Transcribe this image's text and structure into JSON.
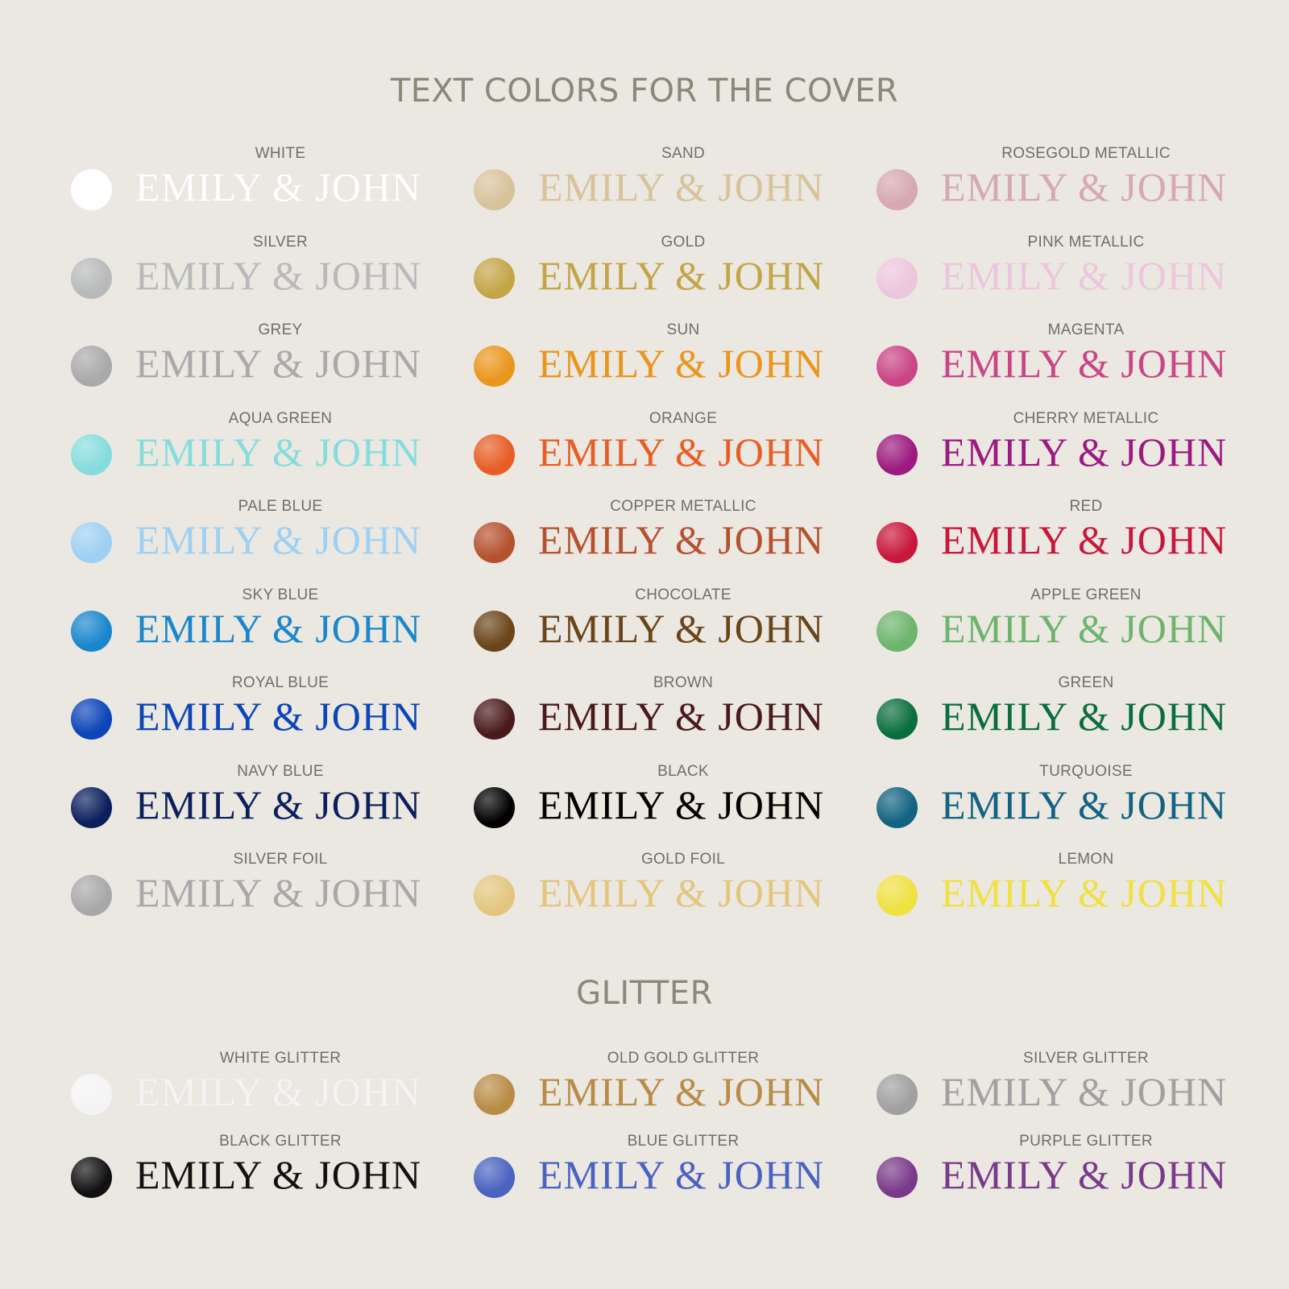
{
  "title": "TEXT COLORS FOR THE COVER",
  "glitter_title": "GLITTER",
  "sample_text": "EMILY & JOHN",
  "colors": [
    [
      {
        "name": "WHITE",
        "color": "#ffffff"
      },
      {
        "name": "SILVER",
        "color": "#b8b9ba"
      },
      {
        "name": "GREY",
        "color": "#a9a9a9"
      },
      {
        "name": "AQUA GREEN",
        "color": "#86dcdc"
      },
      {
        "name": "PALE BLUE",
        "color": "#9dd0f3"
      },
      {
        "name": "SKY BLUE",
        "color": "#1a86cc"
      },
      {
        "name": "ROYAL BLUE",
        "color": "#0b45b8"
      },
      {
        "name": "NAVY BLUE",
        "color": "#0b1f5c"
      },
      {
        "name": "SILVER FOIL",
        "color": "#a8a8a8"
      }
    ],
    [
      {
        "name": "SAND",
        "color": "#d8c29a"
      },
      {
        "name": "GOLD",
        "color": "#c3a548"
      },
      {
        "name": "SUN",
        "color": "#ea951c"
      },
      {
        "name": "ORANGE",
        "color": "#e85d26"
      },
      {
        "name": "COPPER METALLIC",
        "color": "#b5512e"
      },
      {
        "name": "CHOCOLATE",
        "color": "#6b451a"
      },
      {
        "name": "BROWN",
        "color": "#4a1a1a"
      },
      {
        "name": "BLACK",
        "color": "#000000"
      },
      {
        "name": "GOLD FOIL",
        "color": "#e3c67e"
      }
    ],
    [
      {
        "name": "ROSEGOLD METALLIC",
        "color": "#d6a8b0"
      },
      {
        "name": "PINK METALLIC",
        "color": "#ecc6dc"
      },
      {
        "name": "MAGENTA",
        "color": "#c94585"
      },
      {
        "name": "CHERRY METALLIC",
        "color": "#9c1a7f"
      },
      {
        "name": "RED",
        "color": "#c8173a"
      },
      {
        "name": "APPLE GREEN",
        "color": "#6db46c"
      },
      {
        "name": "GREEN",
        "color": "#0a6e3c"
      },
      {
        "name": "TURQUOISE",
        "color": "#126381"
      },
      {
        "name": "LEMON",
        "color": "#f0e040"
      }
    ]
  ],
  "glitters": [
    [
      {
        "name": "WHITE GLITTER",
        "color": "#f4f4f4"
      },
      {
        "name": "BLACK GLITTER",
        "color": "#111111"
      }
    ],
    [
      {
        "name": "OLD GOLD GLITTER",
        "color": "#b98c46"
      },
      {
        "name": "BLUE GLITTER",
        "color": "#4a62c0"
      }
    ],
    [
      {
        "name": "SILVER GLITTER",
        "color": "#a0a0a0"
      },
      {
        "name": "PURPLE GLITTER",
        "color": "#7a3a8a"
      }
    ]
  ]
}
